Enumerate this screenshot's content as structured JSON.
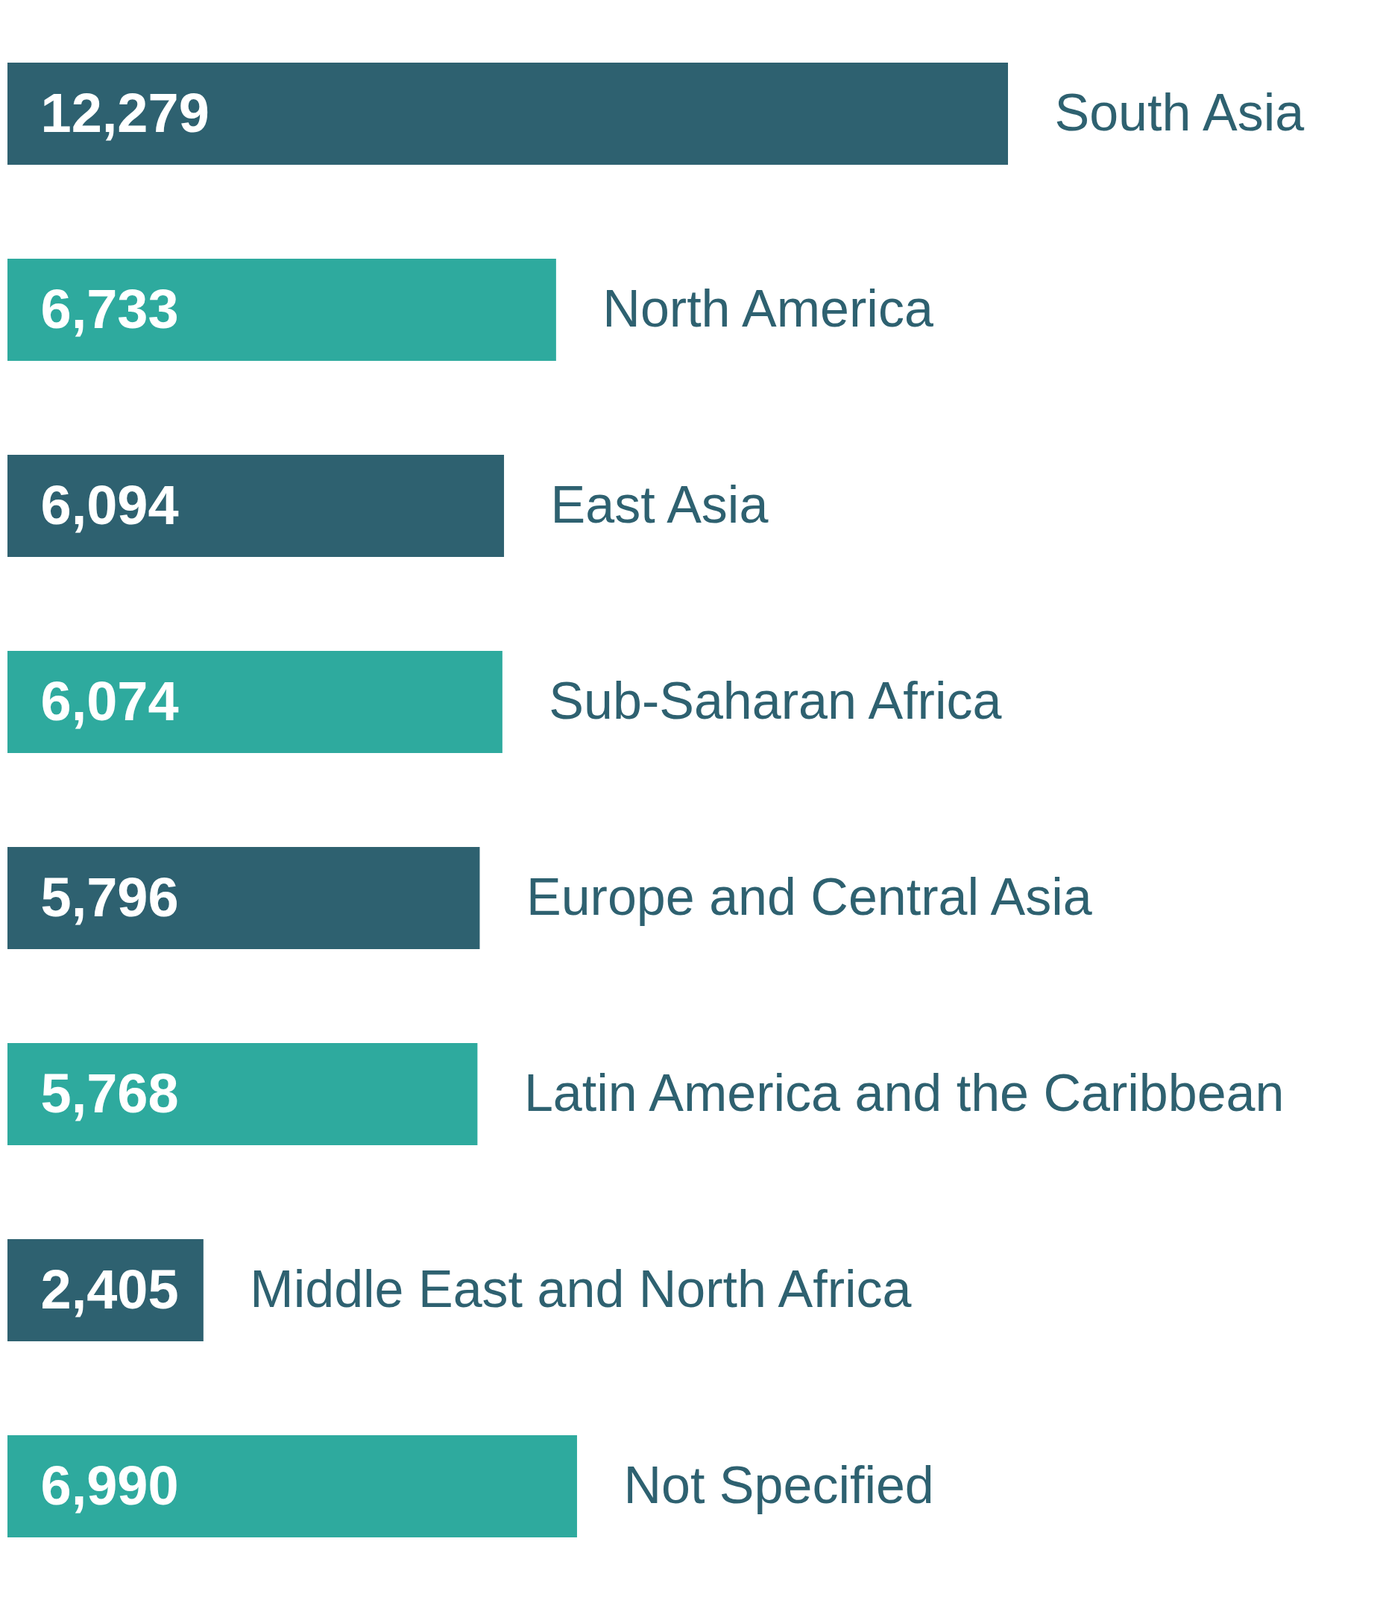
{
  "chart_data": {
    "type": "bar",
    "orientation": "horizontal",
    "categories": [
      "South Asia",
      "North America",
      "East Asia",
      "Sub-Saharan Africa",
      "Europe and Central Asia",
      "Latin America and the Caribbean",
      "Middle East and North Africa",
      "Not Specified"
    ],
    "values": [
      12279,
      6733,
      6094,
      6074,
      5796,
      5768,
      2405,
      6990
    ],
    "value_labels": [
      "12,279",
      "6,733",
      "6,094",
      "6,074",
      "5,796",
      "5,768",
      "2,405",
      "6,990"
    ],
    "colors": [
      "#2e6170",
      "#2eaa9e",
      "#2e6170",
      "#2eaa9e",
      "#2e6170",
      "#2eaa9e",
      "#2e6170",
      "#2eaa9e"
    ],
    "xlim": [
      0,
      12279
    ],
    "data_labels": true,
    "tick_labels": false
  }
}
